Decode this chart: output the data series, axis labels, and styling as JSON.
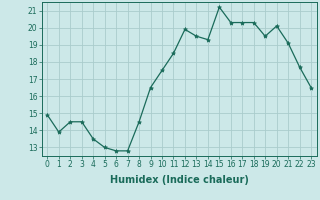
{
  "x": [
    0,
    1,
    2,
    3,
    4,
    5,
    6,
    7,
    8,
    9,
    10,
    11,
    12,
    13,
    14,
    15,
    16,
    17,
    18,
    19,
    20,
    21,
    22,
    23
  ],
  "y": [
    14.9,
    13.9,
    14.5,
    14.5,
    13.5,
    13.0,
    12.8,
    12.8,
    14.5,
    16.5,
    17.5,
    18.5,
    19.9,
    19.5,
    19.3,
    21.2,
    20.3,
    20.3,
    20.3,
    19.5,
    20.1,
    19.1,
    17.7,
    16.5
  ],
  "line_color": "#1a6b5a",
  "marker": "*",
  "marker_size": 3,
  "bg_color": "#cce8e8",
  "grid_color": "#aacccc",
  "xlabel": "Humidex (Indice chaleur)",
  "xlim": [
    -0.5,
    23.5
  ],
  "ylim": [
    12.5,
    21.5
  ],
  "yticks": [
    13,
    14,
    15,
    16,
    17,
    18,
    19,
    20,
    21
  ],
  "xticks": [
    0,
    1,
    2,
    3,
    4,
    5,
    6,
    7,
    8,
    9,
    10,
    11,
    12,
    13,
    14,
    15,
    16,
    17,
    18,
    19,
    20,
    21,
    22,
    23
  ],
  "tick_fontsize": 5.5,
  "label_fontsize": 7
}
